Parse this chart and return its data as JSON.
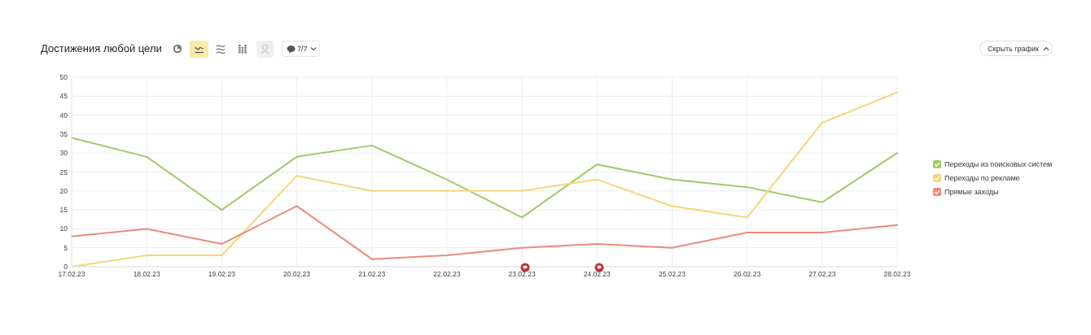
{
  "chart_data": {
    "type": "line",
    "title": "Достижения любой цели",
    "categories": [
      "17.02.23",
      "18.02.23",
      "19.02.23",
      "20.02.23",
      "21.02.23",
      "22.02.23",
      "23.02.23",
      "24.02.23",
      "25.02.23",
      "26.02.23",
      "27.02.23",
      "28.02.23"
    ],
    "series": [
      {
        "name": "Переходы из поисковых систем",
        "color": "#a3c86b",
        "values": [
          34,
          29,
          15,
          29,
          32,
          23,
          13,
          27,
          23,
          21,
          17,
          30
        ]
      },
      {
        "name": "Переходы по рекламе",
        "color": "#f5d775",
        "values": [
          0,
          3,
          3,
          24,
          20,
          20,
          20,
          23,
          16,
          13,
          38,
          46
        ]
      },
      {
        "name": "Прямые заходы",
        "color": "#ec8a7c",
        "values": [
          8,
          10,
          6,
          16,
          2,
          3,
          5,
          6,
          5,
          9,
          9,
          11
        ]
      }
    ],
    "ylim": [
      0,
      50
    ],
    "yticks": [
      0,
      5,
      10,
      15,
      20,
      25,
      30,
      35,
      40,
      45,
      50
    ],
    "grid": true,
    "legend": "right",
    "marker": "none",
    "line_style": "solid",
    "annotations": [
      "7/7",
      "Скрыть график"
    ]
  }
}
